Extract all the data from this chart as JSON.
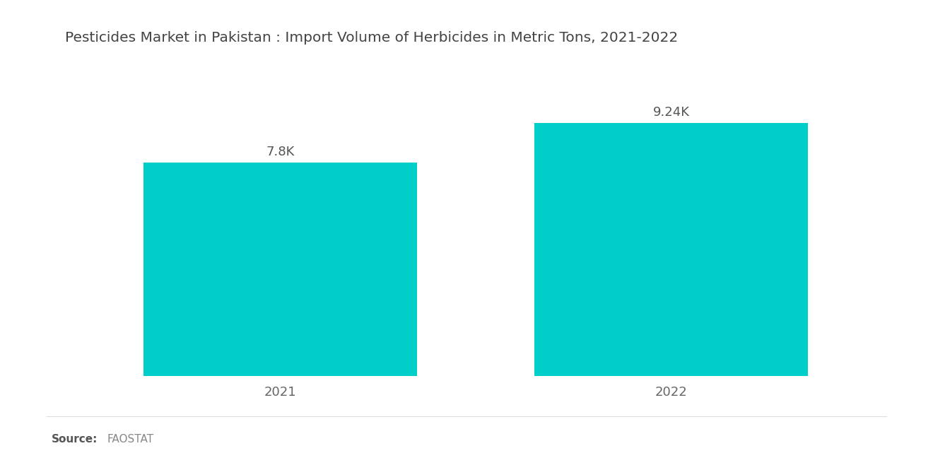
{
  "title": "Pesticides Market in Pakistan : Import Volume of Herbicides in Metric Tons, 2021-2022",
  "categories": [
    "2021",
    "2022"
  ],
  "values": [
    7800,
    9240
  ],
  "labels": [
    "7.8K",
    "9.24K"
  ],
  "bar_color": "#00CEC9",
  "background_color": "#ffffff",
  "title_fontsize": 14.5,
  "label_fontsize": 13,
  "tick_fontsize": 13,
  "bar_width": 0.7,
  "ylim": [
    0,
    11500
  ],
  "xlim": [
    -0.55,
    1.55
  ]
}
